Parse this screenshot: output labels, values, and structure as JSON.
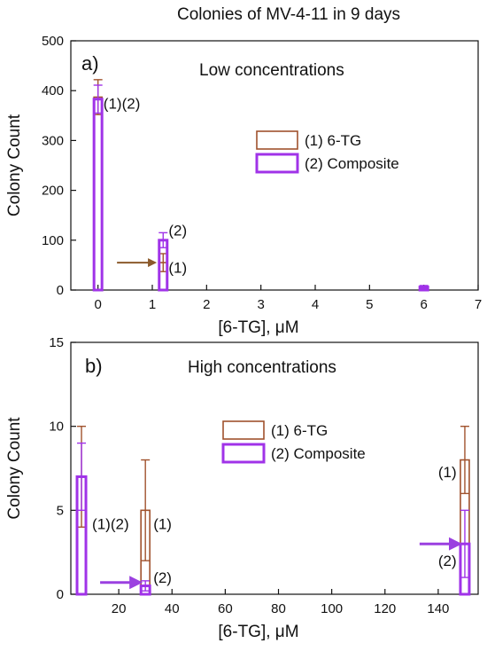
{
  "title": "Colonies of MV-4-11 in 9 days",
  "colors": {
    "six_tg": "#a0522d",
    "composite": "#a033e8",
    "arrow_a": "#8b5a2b",
    "arrow_b": "#9b40e0",
    "axis": "#111111"
  },
  "chart_data": [
    {
      "type": "bar",
      "panel_label": "a)",
      "subtitle": "Low concentrations",
      "xlabel": "[6-TG], μM",
      "ylabel": "Colony Count",
      "xlim": [
        -0.5,
        7
      ],
      "ylim": [
        0,
        500
      ],
      "xticks": [
        0,
        1,
        2,
        3,
        4,
        5,
        6,
        7
      ],
      "yticks": [
        0,
        100,
        200,
        300,
        400,
        500
      ],
      "legend": {
        "position": "center-right",
        "entries": [
          {
            "key": "six_tg",
            "label": "(1) 6-TG"
          },
          {
            "key": "composite",
            "label": "(2) Composite"
          }
        ]
      },
      "series": [
        {
          "key": "six_tg",
          "x": [
            0,
            1.2,
            6
          ],
          "values": [
            387,
            55,
            4
          ],
          "errors": [
            35,
            18,
            3
          ]
        },
        {
          "key": "composite",
          "x": [
            0,
            1.2,
            6
          ],
          "values": [
            383,
            100,
            6
          ],
          "errors": [
            28,
            15,
            3
          ]
        }
      ],
      "annotations": [
        {
          "text": "(1)(2)",
          "x": 0.1,
          "y": 375
        },
        {
          "text": "(2)",
          "x": 1.3,
          "y": 120
        },
        {
          "text": "(1)",
          "x": 1.3,
          "y": 45
        }
      ],
      "arrows": [
        {
          "x_from": 0.35,
          "y_from": 55,
          "x_to": 1.05,
          "y_to": 55,
          "color_key": "arrow_a"
        }
      ]
    },
    {
      "type": "bar",
      "panel_label": "b)",
      "subtitle": "High concentrations",
      "xlabel": "[6-TG], μM",
      "ylabel": "Colony Count",
      "xlim": [
        2,
        155
      ],
      "ylim": [
        0,
        15
      ],
      "xticks": [
        20,
        40,
        60,
        80,
        100,
        120,
        140
      ],
      "yticks": [
        0,
        5,
        10,
        15
      ],
      "legend": {
        "position": "center",
        "entries": [
          {
            "key": "six_tg",
            "label": "(1) 6-TG"
          },
          {
            "key": "composite",
            "label": "(2) Composite"
          }
        ]
      },
      "series": [
        {
          "key": "six_tg",
          "x": [
            6,
            30,
            150
          ],
          "values": [
            7,
            5,
            8
          ],
          "errors": [
            3,
            3,
            2
          ]
        },
        {
          "key": "composite",
          "x": [
            6,
            30,
            150
          ],
          "values": [
            7,
            0.5,
            3
          ],
          "errors": [
            2,
            0.3,
            2
          ]
        }
      ],
      "annotations": [
        {
          "text": "(1)(2)",
          "x": 10,
          "y": 4.2
        },
        {
          "text": "(1)",
          "x": 33,
          "y": 4.2
        },
        {
          "text": "(2)",
          "x": 33,
          "y": 1.0
        },
        {
          "text": "(1)",
          "x": 140,
          "y": 7.3
        },
        {
          "text": "(2)",
          "x": 140,
          "y": 2.0
        }
      ],
      "arrows": [
        {
          "x_from": 13,
          "y_from": 0.7,
          "x_to": 28,
          "y_to": 0.7,
          "color_key": "arrow_b"
        },
        {
          "x_from": 133,
          "y_from": 3.0,
          "x_to": 148,
          "y_to": 3.0,
          "color_key": "arrow_b"
        }
      ]
    }
  ]
}
